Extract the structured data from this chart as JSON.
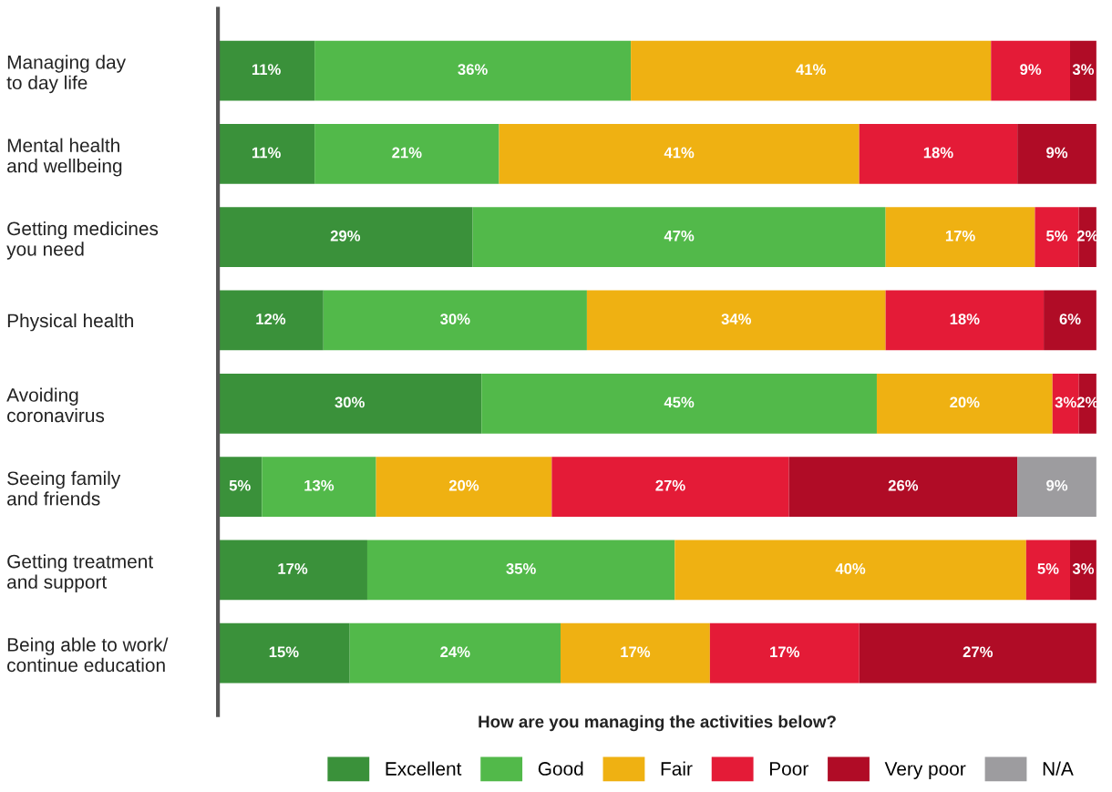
{
  "chart_data": {
    "type": "bar",
    "orientation": "horizontal",
    "stacked": true,
    "tick_labels": "y",
    "grid": false,
    "legend": "bottom",
    "xlabel": "How are you managing the activities below?",
    "categories": [
      "Managing day\nto day life",
      "Mental health\nand wellbeing",
      "Getting medicines\nyou need",
      "Physical health",
      "Avoiding\ncoronavirus",
      "Seeing family\nand friends",
      "Getting treatment\nand support",
      "Being able to work/\ncontinue education"
    ],
    "series": [
      {
        "name": "Excellent",
        "color": "#3a913a",
        "values": [
          11,
          11,
          29,
          12,
          30,
          5,
          17,
          15
        ],
        "value_labels": [
          "11%",
          "11%",
          "29%",
          "12%",
          "30%",
          "5%",
          "17%",
          "15%"
        ]
      },
      {
        "name": "Good",
        "color": "#52b94a",
        "values": [
          36,
          21,
          47,
          30,
          45,
          13,
          35,
          24
        ],
        "value_labels": [
          "36%",
          "21%",
          "47%",
          "30%",
          "45%",
          "13%",
          "35%",
          "24%"
        ]
      },
      {
        "name": "Fair",
        "color": "#efb112",
        "values": [
          41,
          41,
          17,
          34,
          20,
          20,
          40,
          17
        ],
        "value_labels": [
          "41%",
          "41%",
          "17%",
          "34%",
          "20%",
          "20%",
          "40%",
          "17%"
        ]
      },
      {
        "name": "Poor",
        "color": "#e41b37",
        "values": [
          9,
          18,
          5,
          18,
          3,
          27,
          5,
          17
        ],
        "value_labels": [
          "9%",
          "18%",
          "5%",
          "18%",
          "3%",
          "27%",
          "5%",
          "17%"
        ]
      },
      {
        "name": "Very poor",
        "color": "#b00c26",
        "values": [
          3,
          9,
          2,
          6,
          2,
          26,
          3,
          27
        ],
        "value_labels": [
          "3%",
          "9%",
          "2%",
          "6%",
          "2%",
          "26%",
          "3%",
          "27%"
        ]
      },
      {
        "name": "N/A",
        "color": "#9d9c9f",
        "values": [
          null,
          null,
          null,
          null,
          null,
          9,
          null,
          null
        ],
        "value_labels": [
          null,
          null,
          null,
          null,
          null,
          "9%",
          null,
          null
        ]
      }
    ]
  }
}
